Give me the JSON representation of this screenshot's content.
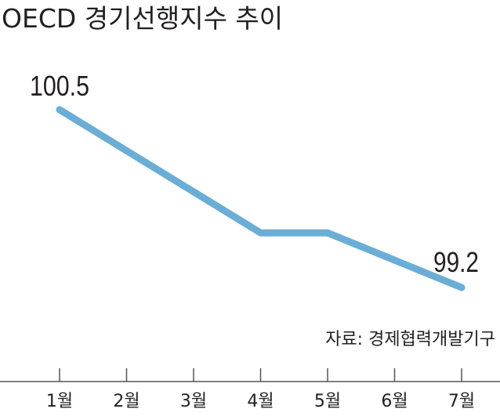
{
  "chart_data": {
    "type": "line",
    "title": "OECD 경기선행지수 추이",
    "source": "자료: 경제협력개발기구",
    "categories": [
      "1월",
      "2월",
      "3월",
      "4월",
      "5월",
      "6월",
      "7월"
    ],
    "series": [
      {
        "values": [
          100.5,
          100.2,
          99.9,
          99.6,
          99.6,
          99.4,
          99.2
        ],
        "color": "#6aaed6"
      }
    ],
    "annotations": [
      {
        "index": 0,
        "text": "100.5"
      },
      {
        "index": 6,
        "text": "99.2"
      }
    ],
    "ylim": [
      98.9,
      100.8
    ],
    "grid": false,
    "legend": "none"
  }
}
